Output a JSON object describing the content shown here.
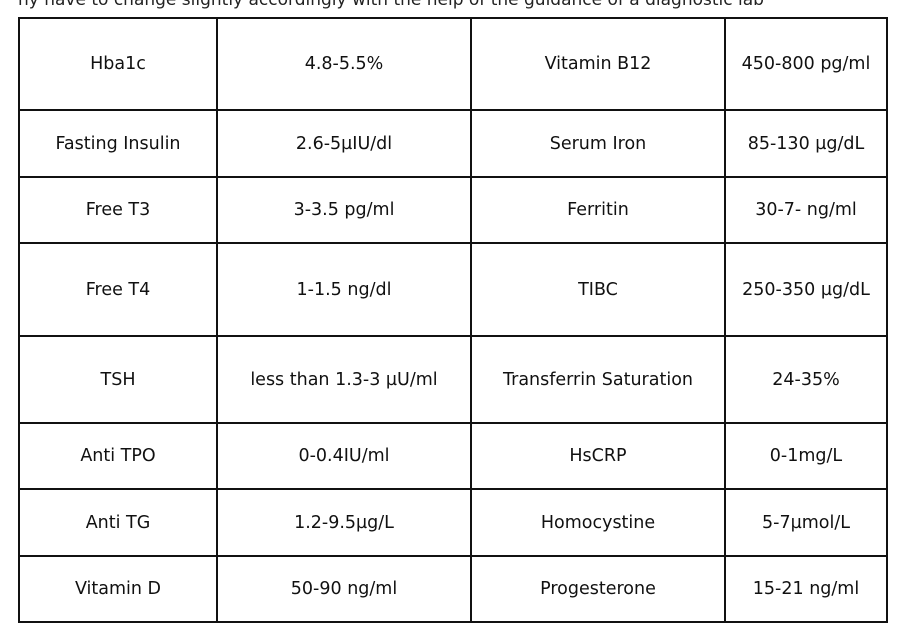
{
  "header_partial_text": "ny have to change slightly accordingly with the help of the guidance of a diagnostic lab",
  "rows": [
    [
      "Hba1c",
      "4.8-5.5%",
      "Vitamin B12",
      "450-800 pg/ml"
    ],
    [
      "Fasting Insulin",
      "2.6-5µIU/dl",
      "Serum Iron",
      "85-130 µg/dL"
    ],
    [
      "Free T3",
      "3-3.5 pg/ml",
      "Ferritin",
      "30-7- ng/ml"
    ],
    [
      "Free T4",
      "1-1.5 ng/dl",
      "TIBC",
      "250-350 µg/dL"
    ],
    [
      "TSH",
      "less than 1.3-3 µU/ml",
      "Transferrin Saturation",
      "24-35%"
    ],
    [
      "Anti TPO",
      "0-0.4IU/ml",
      "HsCRP",
      "0-1mg/L"
    ],
    [
      "Anti TG",
      "1.2-9.5µg/L",
      "Homocystine",
      "5-7µmol/L"
    ],
    [
      "Vitamin D",
      "50-90 ng/ml",
      "Progesterone",
      "15-21 ng/ml"
    ]
  ]
}
